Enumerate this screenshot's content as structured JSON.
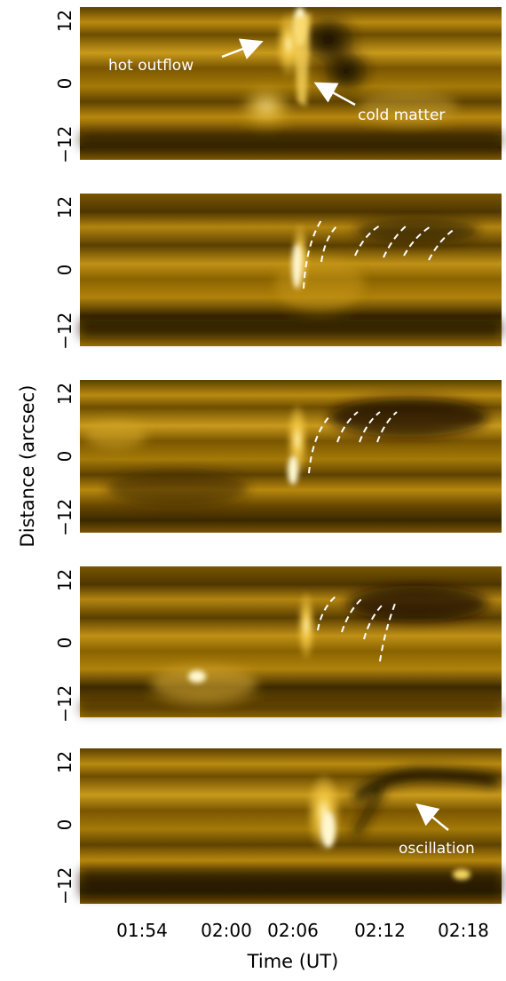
{
  "figure": {
    "ylabel": "Distance (arcsec)",
    "xlabel": "Time (UT)",
    "x_ticks": [
      "01:54",
      "02:00",
      "02:06",
      "02:12",
      "02:18"
    ],
    "y_ticks": [
      "12",
      "0",
      "−12"
    ],
    "panels": [
      {
        "annotations": [
          {
            "text": "hot outflow",
            "arrow": "points-right-up"
          },
          {
            "text": "cold matter",
            "arrow": "points-left-up"
          }
        ],
        "dashed_tracks": 0
      },
      {
        "annotations": [],
        "dashed_tracks": 6
      },
      {
        "annotations": [],
        "dashed_tracks": 4
      },
      {
        "annotations": [],
        "dashed_tracks": 4
      },
      {
        "annotations": [
          {
            "text": "oscillation",
            "arrow": "points-left-up"
          }
        ],
        "dashed_tracks": 0
      }
    ]
  },
  "colors": {
    "base": "#8a6200",
    "bright": "#fff0a0",
    "dark": "#2a1c00",
    "annotation": "#ffffff"
  }
}
